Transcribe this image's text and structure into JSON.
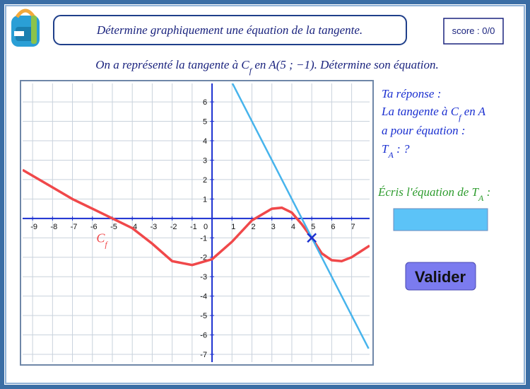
{
  "header": {
    "title": "Détermine graphiquement une équation de la tangente.",
    "score": "score : 0/0"
  },
  "question": [
    "On a représenté la tangente à C",
    "f",
    " en A(5 ; −1). Détermine son équation."
  ],
  "answer": {
    "heading": "Ta réponse :",
    "line1": [
      "La tangente à C",
      "f",
      " en A"
    ],
    "line2": "a pour équation :",
    "line3": [
      "T",
      "A",
      " : ?"
    ]
  },
  "prompt": [
    "Écris l'équation de T",
    "A",
    " :"
  ],
  "button": "Valider",
  "graph": {
    "xlim": [
      -9.5,
      7.9
    ],
    "ylim": [
      -7.4,
      6.95
    ],
    "xticks": [
      -9,
      -8,
      -7,
      -6,
      -5,
      -4,
      -3,
      -2,
      -1,
      0,
      1,
      2,
      3,
      4,
      5,
      6,
      7
    ],
    "yticks": [
      -7,
      -6,
      -5,
      -4,
      -3,
      -2,
      -1,
      1,
      2,
      3,
      4,
      5,
      6
    ],
    "curve": {
      "color": "#f0484a",
      "label": [
        "C",
        "f"
      ],
      "x": [
        -9.5,
        -8,
        -7,
        -6,
        -5,
        -4,
        -3,
        -2,
        -1,
        0,
        1,
        2,
        3,
        3.5,
        4,
        4.5,
        5,
        5.5,
        6,
        6.5,
        7,
        7.9
      ],
      "y": [
        2.5,
        1.6,
        1.0,
        0.5,
        0,
        -0.5,
        -1.3,
        -2.2,
        -2.4,
        -2.1,
        -1.2,
        -0.1,
        0.5,
        0.55,
        0.3,
        -0.3,
        -1,
        -1.8,
        -2.15,
        -2.2,
        -2.0,
        -1.4
      ]
    },
    "tangent": {
      "color": "#47b4ec",
      "x": [
        1,
        7.85
      ],
      "y": [
        7,
        -6.7
      ]
    },
    "point_a": {
      "x": 5,
      "y": -1,
      "color": "#1a2fd0"
    }
  }
}
